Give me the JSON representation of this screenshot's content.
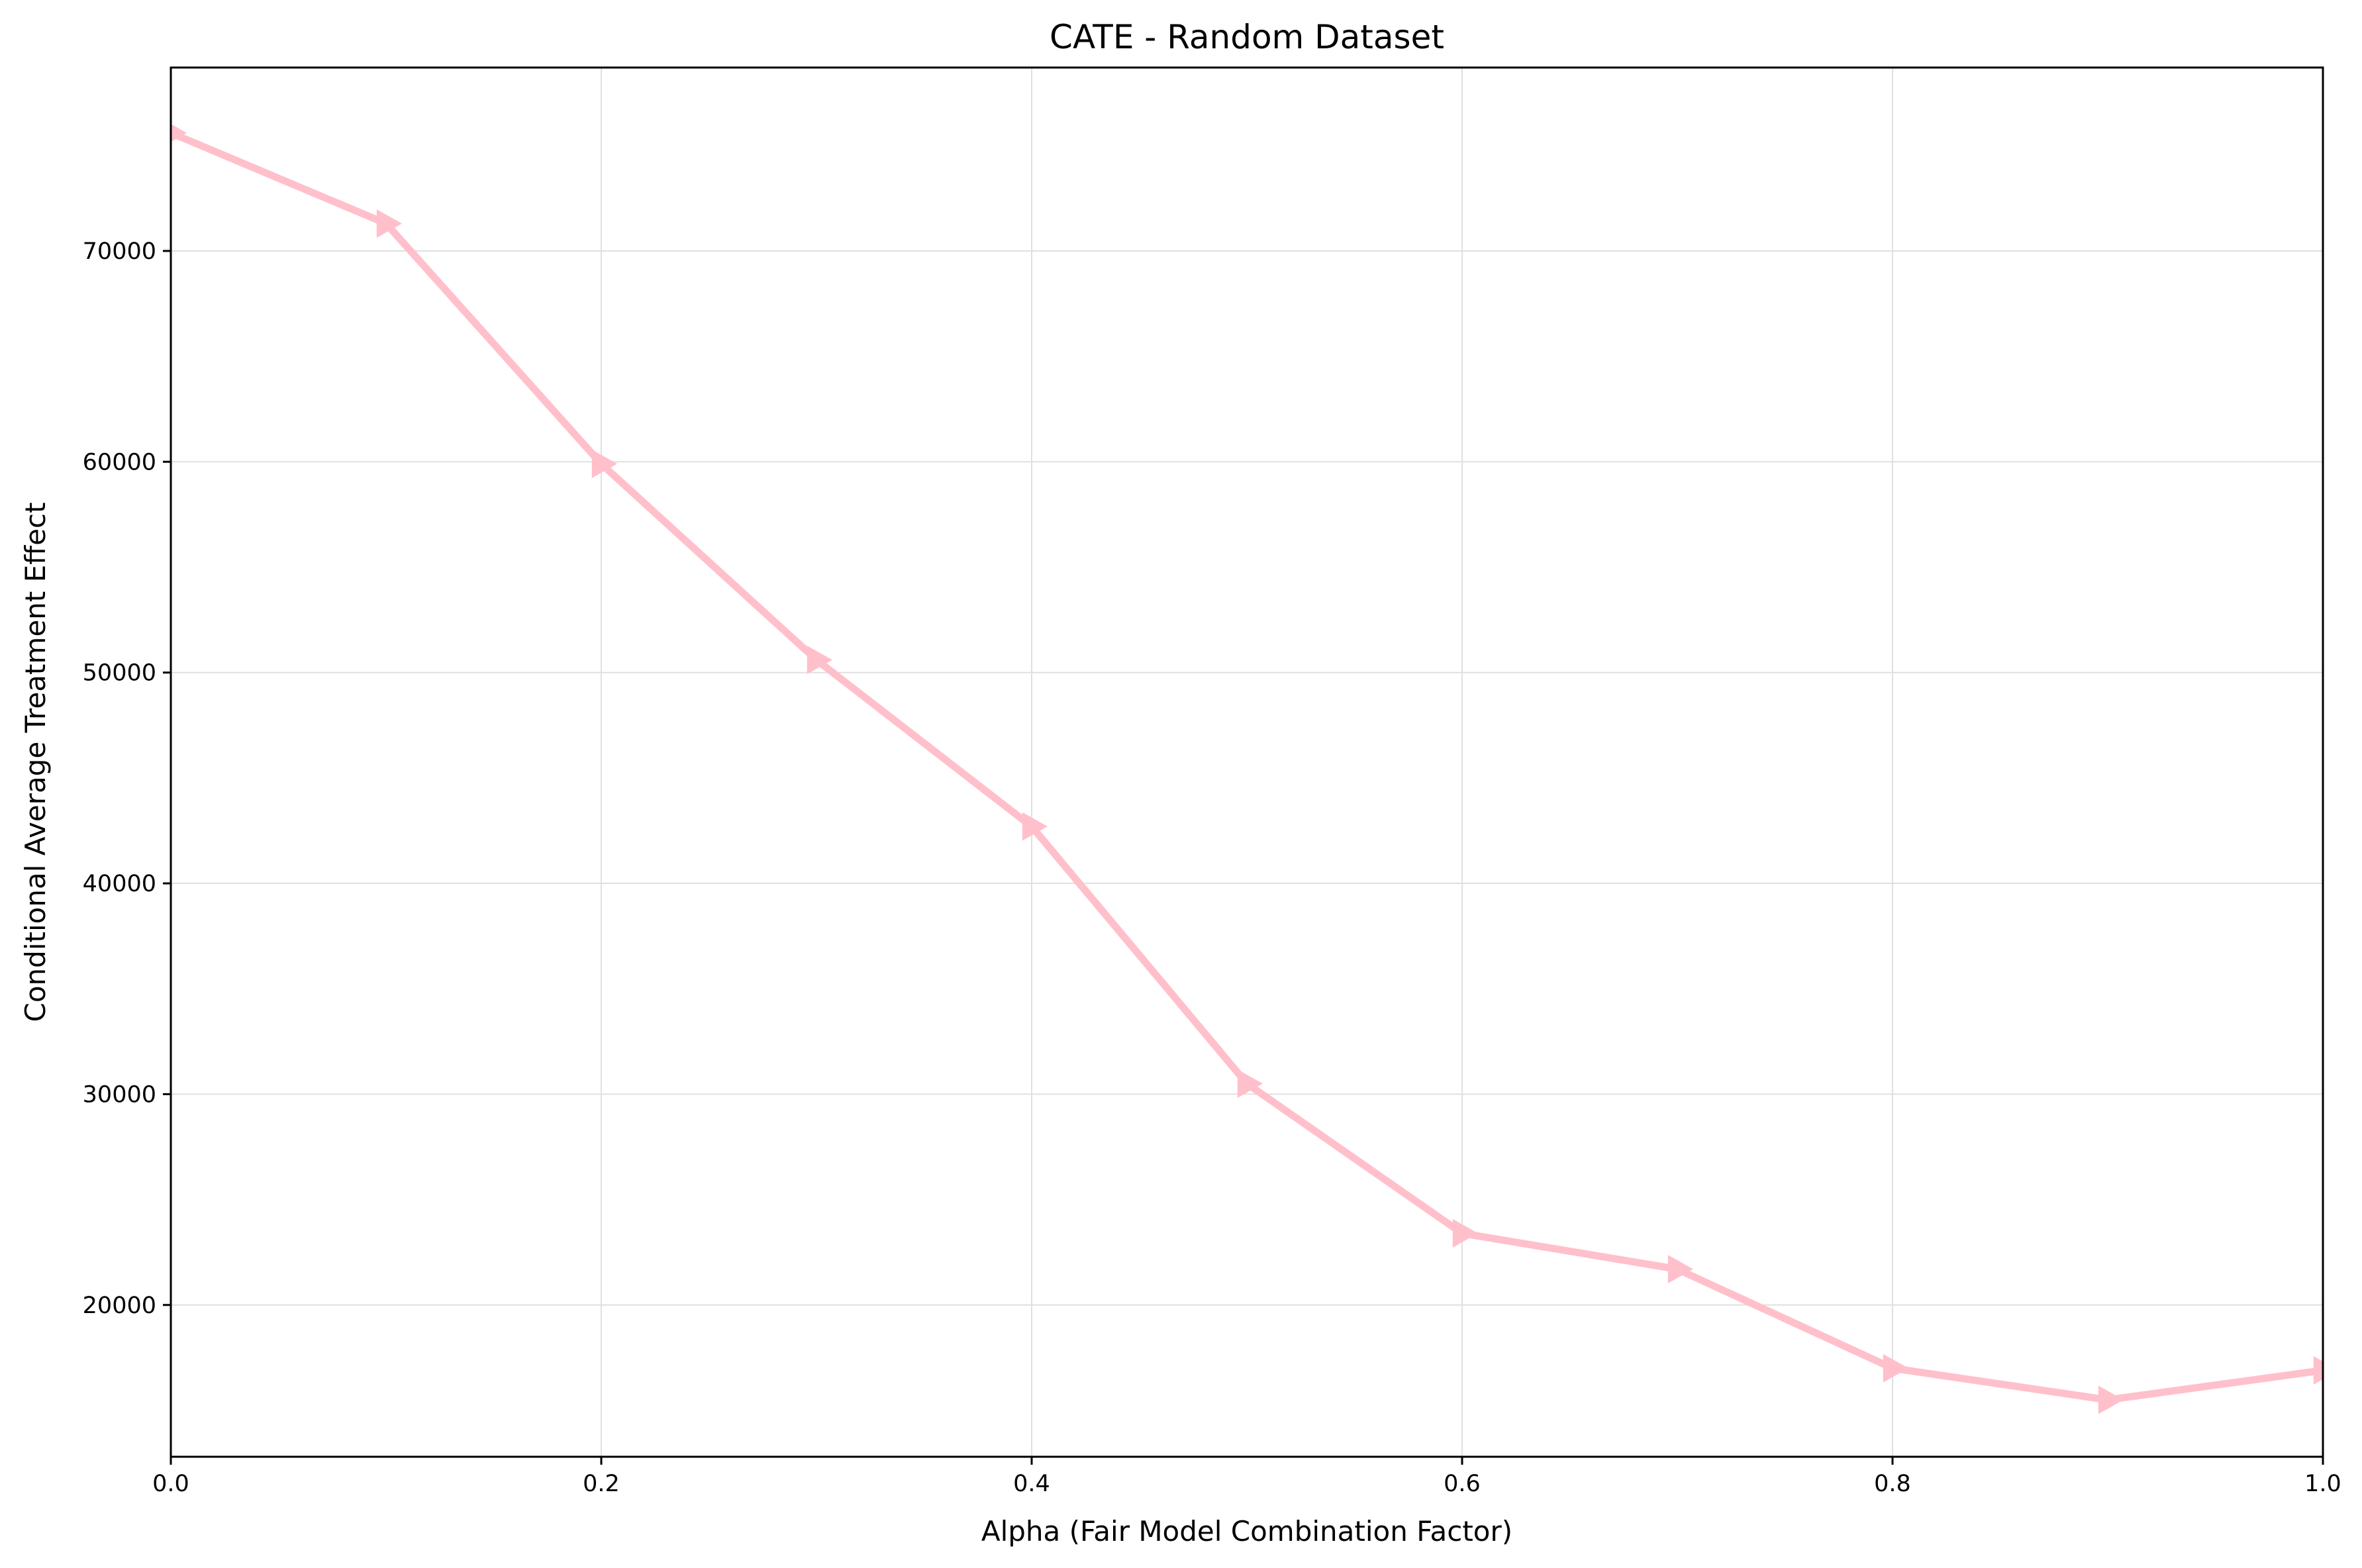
{
  "chart_data": {
    "type": "line",
    "title": "CATE - Random Dataset",
    "xlabel": "Alpha (Fair Model Combination Factor)",
    "ylabel": "Conditional Average Treatment Effect",
    "xlim": [
      0.0,
      1.0
    ],
    "ylim": [
      12800,
      78700
    ],
    "x_ticks": [
      0.0,
      0.2,
      0.4,
      0.6,
      0.8,
      1.0
    ],
    "x_tick_labels": [
      "0.0",
      "0.2",
      "0.4",
      "0.6",
      "0.8",
      "1.0"
    ],
    "y_ticks": [
      20000,
      30000,
      40000,
      50000,
      60000,
      70000
    ],
    "y_tick_labels": [
      "20000",
      "30000",
      "40000",
      "50000",
      "60000",
      "70000"
    ],
    "grid": true,
    "marker": "triangle-right",
    "color": "#ffc0cb",
    "series": [
      {
        "x": [
          0.0,
          0.1,
          0.2,
          0.3,
          0.4,
          0.5,
          0.6,
          0.7,
          0.8,
          0.9,
          1.0
        ],
        "values": [
          75600,
          71300,
          59900,
          50600,
          42700,
          30500,
          23400,
          21700,
          17000,
          15500,
          16900
        ]
      }
    ]
  }
}
